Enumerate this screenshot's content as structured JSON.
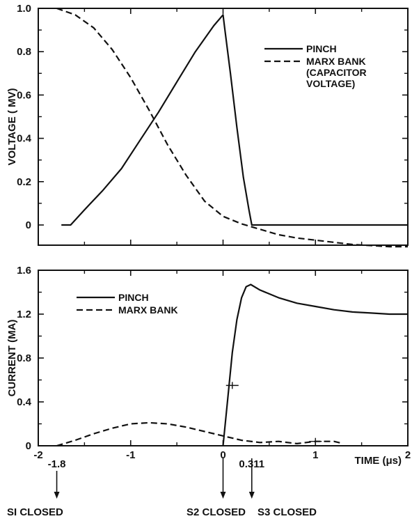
{
  "chart_data": [
    {
      "type": "line",
      "ylabel": "VOLTAGE ( MV)",
      "xlim": [
        -2,
        2
      ],
      "ylim": [
        -0.1,
        1.0
      ],
      "yticks": [
        0,
        0.2,
        0.4,
        0.6,
        0.8,
        1.0
      ],
      "ytick_labels": [
        "0",
        "0.2",
        "0.4",
        "0.6",
        "0.8",
        "1.0"
      ],
      "grid": false,
      "legend_position": "top-right",
      "series": [
        {
          "name": "PINCH",
          "style": "solid",
          "x": [
            -1.75,
            -1.65,
            -1.5,
            -1.3,
            -1.1,
            -0.9,
            -0.7,
            -0.5,
            -0.3,
            -0.1,
            0.0,
            0.02,
            0.08,
            0.15,
            0.22,
            0.28,
            0.311,
            0.5,
            1.0,
            1.5,
            2.0
          ],
          "y": [
            0.0,
            0.0,
            0.07,
            0.16,
            0.26,
            0.39,
            0.52,
            0.66,
            0.8,
            0.92,
            0.97,
            0.9,
            0.7,
            0.45,
            0.22,
            0.07,
            0.0,
            0.0,
            0.0,
            0.0,
            0.0
          ]
        },
        {
          "name": "MARX BANK",
          "name_extra": [
            "(CAPACITOR",
            "VOLTAGE)"
          ],
          "style": "dashed",
          "x": [
            -1.8,
            -1.6,
            -1.4,
            -1.2,
            -1.0,
            -0.8,
            -0.6,
            -0.4,
            -0.2,
            0.0,
            0.2,
            0.4,
            0.6,
            0.8,
            1.0,
            1.2,
            1.4,
            1.6,
            1.8,
            2.0
          ],
          "y": [
            1.0,
            0.97,
            0.91,
            0.81,
            0.68,
            0.53,
            0.37,
            0.23,
            0.11,
            0.04,
            0.005,
            -0.02,
            -0.045,
            -0.06,
            -0.07,
            -0.08,
            -0.09,
            -0.095,
            -0.1,
            -0.1
          ]
        }
      ]
    },
    {
      "type": "line",
      "ylabel": "CURRENT (MA)",
      "xlabel": "TIME (μs)",
      "xlim": [
        -2,
        2
      ],
      "ylim": [
        0,
        1.6
      ],
      "xticks": [
        -2,
        -1,
        0,
        1,
        2
      ],
      "xtick_labels": [
        "-2",
        "-1",
        "0",
        "1",
        "2"
      ],
      "yticks": [
        0,
        0.4,
        0.8,
        1.2,
        1.6
      ],
      "ytick_labels": [
        "0",
        "0.4",
        "0.8",
        "1.2",
        "1.6"
      ],
      "grid": false,
      "legend_position": "top-left",
      "series": [
        {
          "name": "PINCH",
          "style": "solid",
          "x": [
            0.0,
            0.05,
            0.1,
            0.15,
            0.2,
            0.25,
            0.3,
            0.4,
            0.6,
            0.8,
            1.0,
            1.2,
            1.4,
            1.6,
            1.8,
            2.0
          ],
          "y": [
            0.0,
            0.42,
            0.85,
            1.15,
            1.35,
            1.45,
            1.47,
            1.42,
            1.35,
            1.3,
            1.27,
            1.24,
            1.22,
            1.21,
            1.2,
            1.2
          ],
          "marks": [
            {
              "x": 0.1,
              "y": 0.55
            },
            {
              "x": 1.0,
              "y": 0.04
            }
          ]
        },
        {
          "name": "MARX BANK",
          "style": "dashed",
          "x": [
            -1.8,
            -1.6,
            -1.4,
            -1.2,
            -1.0,
            -0.8,
            -0.6,
            -0.4,
            -0.2,
            0.0,
            0.2,
            0.4,
            0.6,
            0.8,
            1.0,
            1.2,
            1.3
          ],
          "y": [
            0.0,
            0.05,
            0.11,
            0.16,
            0.2,
            0.21,
            0.2,
            0.17,
            0.13,
            0.09,
            0.05,
            0.03,
            0.04,
            0.02,
            0.04,
            0.04,
            0.02
          ]
        }
      ]
    }
  ],
  "events": [
    {
      "time_label": "-1.8",
      "x": -1.8,
      "label": "SI CLOSED"
    },
    {
      "time_label": "",
      "x": 0.0,
      "label": "S2 CLOSED"
    },
    {
      "time_label": "0.311",
      "x": 0.311,
      "label": "S3 CLOSED"
    }
  ]
}
